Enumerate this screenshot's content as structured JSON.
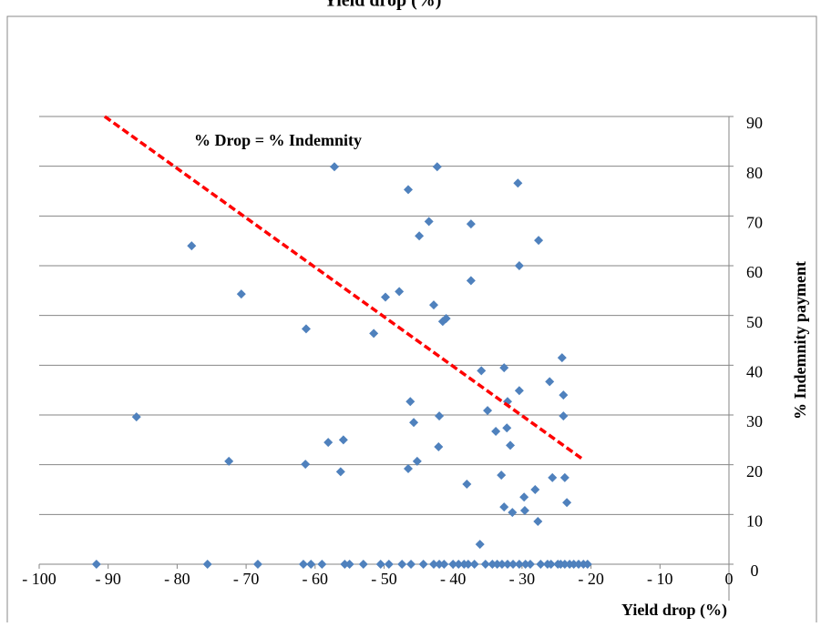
{
  "chart_data": {
    "type": "scatter",
    "title": "Yield drop (%)",
    "x_label": "Yield drop (%)",
    "y_label": "% Indemnity payment",
    "annotation": "% Drop = % Indemnity",
    "xlim": [
      -100,
      0
    ],
    "xticks": [
      {
        "value": -100,
        "label": "- 100"
      },
      {
        "value": -90,
        "label": "- 90"
      },
      {
        "value": -80,
        "label": "- 80"
      },
      {
        "value": -70,
        "label": "- 70"
      },
      {
        "value": -60,
        "label": "- 60"
      },
      {
        "value": -50,
        "label": "- 50"
      },
      {
        "value": -40,
        "label": "- 40"
      },
      {
        "value": -30,
        "label": "- 30"
      },
      {
        "value": -20,
        "label": "- 20"
      },
      {
        "value": -10,
        "label": "- 10"
      },
      0
    ],
    "ylim": [
      0,
      90
    ],
    "yticks": [
      0,
      10,
      20,
      30,
      40,
      50,
      60,
      70,
      80,
      90
    ],
    "grid": true,
    "series": [
      {
        "color": "#4f81bd",
        "x": [
          -85.9,
          -77.9,
          -70.7,
          -72.5,
          -61.3,
          -61.4,
          -57.2,
          -58.1,
          -55.9,
          -56.3,
          -51.5,
          -49.8,
          -47.8,
          -46.5,
          -46.2,
          -45.7,
          -46.5,
          -45.2,
          -44.9,
          -43.5,
          -42.8,
          -42.3,
          -42.0,
          -42.1,
          -41.5,
          -41.0,
          -37.4,
          -37.4,
          -38.0,
          -35.9,
          -36.1,
          -35.0,
          -33.8,
          -33.0,
          -32.6,
          -32.1,
          -32.2,
          -31.7,
          -32.6,
          -31.4,
          -30.6,
          -30.4,
          -30.4,
          -29.7,
          -29.6,
          -28.1,
          -27.6,
          -27.7,
          -26.0,
          -25.6,
          -24.2,
          -24.0,
          -24.0,
          -23.8,
          -23.5,
          -91.7,
          -75.6,
          -68.3,
          -61.7,
          -60.6,
          -59.0,
          -55.7,
          -55.0,
          -53.0,
          -50.5,
          -49.3,
          -47.4,
          -46.1,
          -44.3,
          -42.8,
          -42.0,
          -41.3,
          -40.0,
          -39.2,
          -38.4,
          -37.8,
          -36.9,
          -35.3,
          -34.3,
          -33.6,
          -32.9,
          -32.1,
          -31.3,
          -30.4,
          -29.5,
          -28.8,
          -27.3,
          -26.3,
          -25.8,
          -24.8,
          -24.4,
          -23.8,
          -23.1,
          -22.5,
          -21.8,
          -21.1,
          -20.5
        ],
        "values": [
          29.6,
          64,
          54.3,
          20.7,
          47.3,
          20.1,
          79.9,
          24.5,
          25,
          18.6,
          46.4,
          53.7,
          54.8,
          75.3,
          32.7,
          28.5,
          19.2,
          20.7,
          66,
          68.9,
          52.1,
          79.9,
          29.8,
          23.6,
          48.8,
          49.4,
          68.4,
          57,
          16.1,
          38.9,
          4,
          30.9,
          26.7,
          17.9,
          39.5,
          32.7,
          27.4,
          23.9,
          11.5,
          10.4,
          76.6,
          60,
          34.9,
          13.5,
          10.8,
          15,
          65.1,
          8.6,
          36.7,
          17.4,
          41.5,
          34,
          29.8,
          17.4,
          12.4,
          0,
          0,
          0,
          0,
          0,
          0,
          0,
          0,
          0,
          0,
          0,
          0,
          0,
          0,
          0,
          0,
          0,
          0,
          0,
          0,
          0,
          0,
          0,
          0,
          0,
          0,
          0,
          0,
          0,
          0,
          0,
          0,
          0,
          0,
          0,
          0,
          0,
          0,
          0,
          0,
          0,
          0
        ]
      },
      {
        "type": "line",
        "color": "#ff0000",
        "dashed": true,
        "x": [
          -90.5,
          -21.1
        ],
        "values": [
          90,
          21
        ]
      }
    ]
  }
}
